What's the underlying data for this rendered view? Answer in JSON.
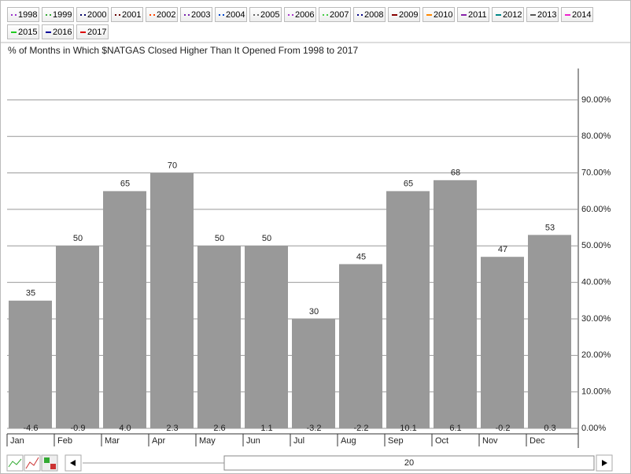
{
  "legend": {
    "items": [
      {
        "name": "1998",
        "color": "#9933cc",
        "style": "dotted"
      },
      {
        "name": "1999",
        "color": "#33aa33",
        "style": "dotted"
      },
      {
        "name": "2000",
        "color": "#000066",
        "style": "dotted"
      },
      {
        "name": "2001",
        "color": "#660000",
        "style": "dotted"
      },
      {
        "name": "2002",
        "color": "#ff4400",
        "style": "dotted"
      },
      {
        "name": "2003",
        "color": "#7722aa",
        "style": "dotted"
      },
      {
        "name": "2004",
        "color": "#0044cc",
        "style": "dotted"
      },
      {
        "name": "2005",
        "color": "#666666",
        "style": "dotted"
      },
      {
        "name": "2006",
        "color": "#aa33cc",
        "style": "dotted"
      },
      {
        "name": "2007",
        "color": "#44cc44",
        "style": "dotted"
      },
      {
        "name": "2008",
        "color": "#000088",
        "style": "dotted"
      },
      {
        "name": "2009",
        "color": "#880000",
        "style": "solid"
      },
      {
        "name": "2010",
        "color": "#ff8800",
        "style": "solid"
      },
      {
        "name": "2011",
        "color": "#8822aa",
        "style": "solid"
      },
      {
        "name": "2012",
        "color": "#008888",
        "style": "solid"
      },
      {
        "name": "2013",
        "color": "#555555",
        "style": "solid"
      },
      {
        "name": "2014",
        "color": "#ee22cc",
        "style": "solid"
      },
      {
        "name": "2015",
        "color": "#22cc22",
        "style": "solid"
      },
      {
        "name": "2016",
        "color": "#000099",
        "style": "solid"
      },
      {
        "name": "2017",
        "color": "#dd0000",
        "style": "solid"
      }
    ]
  },
  "chart_data": {
    "type": "bar",
    "title": "% of Months in Which $NATGAS Closed Higher Than It Opened From 1998 to 2017",
    "categories": [
      "Jan",
      "Feb",
      "Mar",
      "Apr",
      "May",
      "Jun",
      "Jul",
      "Aug",
      "Sep",
      "Oct",
      "Nov",
      "Dec"
    ],
    "values": [
      35,
      50,
      65,
      70,
      50,
      50,
      30,
      45,
      65,
      68,
      47,
      53
    ],
    "bottom_labels": [
      "-4.6",
      "-0.9",
      "4.0",
      "2.3",
      "2.6",
      "1.1",
      "-3.2",
      "-2.2",
      "10.1",
      "6.1",
      "-0.2",
      "0.3"
    ],
    "color": "#999999",
    "ylim": [
      -1.5,
      98.6
    ],
    "yticks": [
      {
        "value": 0,
        "label": "0.00%"
      },
      {
        "value": 10,
        "label": "10.00%"
      },
      {
        "value": 20,
        "label": "20.00%"
      },
      {
        "value": 30,
        "label": "30.00%"
      },
      {
        "value": 40,
        "label": "40.00%"
      },
      {
        "value": 50,
        "label": "50.00%"
      },
      {
        "value": 60,
        "label": "60.00%"
      },
      {
        "value": 70,
        "label": "70.00%"
      },
      {
        "value": 80,
        "label": "80.00%"
      },
      {
        "value": 90,
        "label": "90.00%"
      }
    ],
    "grid": true,
    "y_axis_side": "right"
  },
  "scrollbar": {
    "value": "20"
  }
}
